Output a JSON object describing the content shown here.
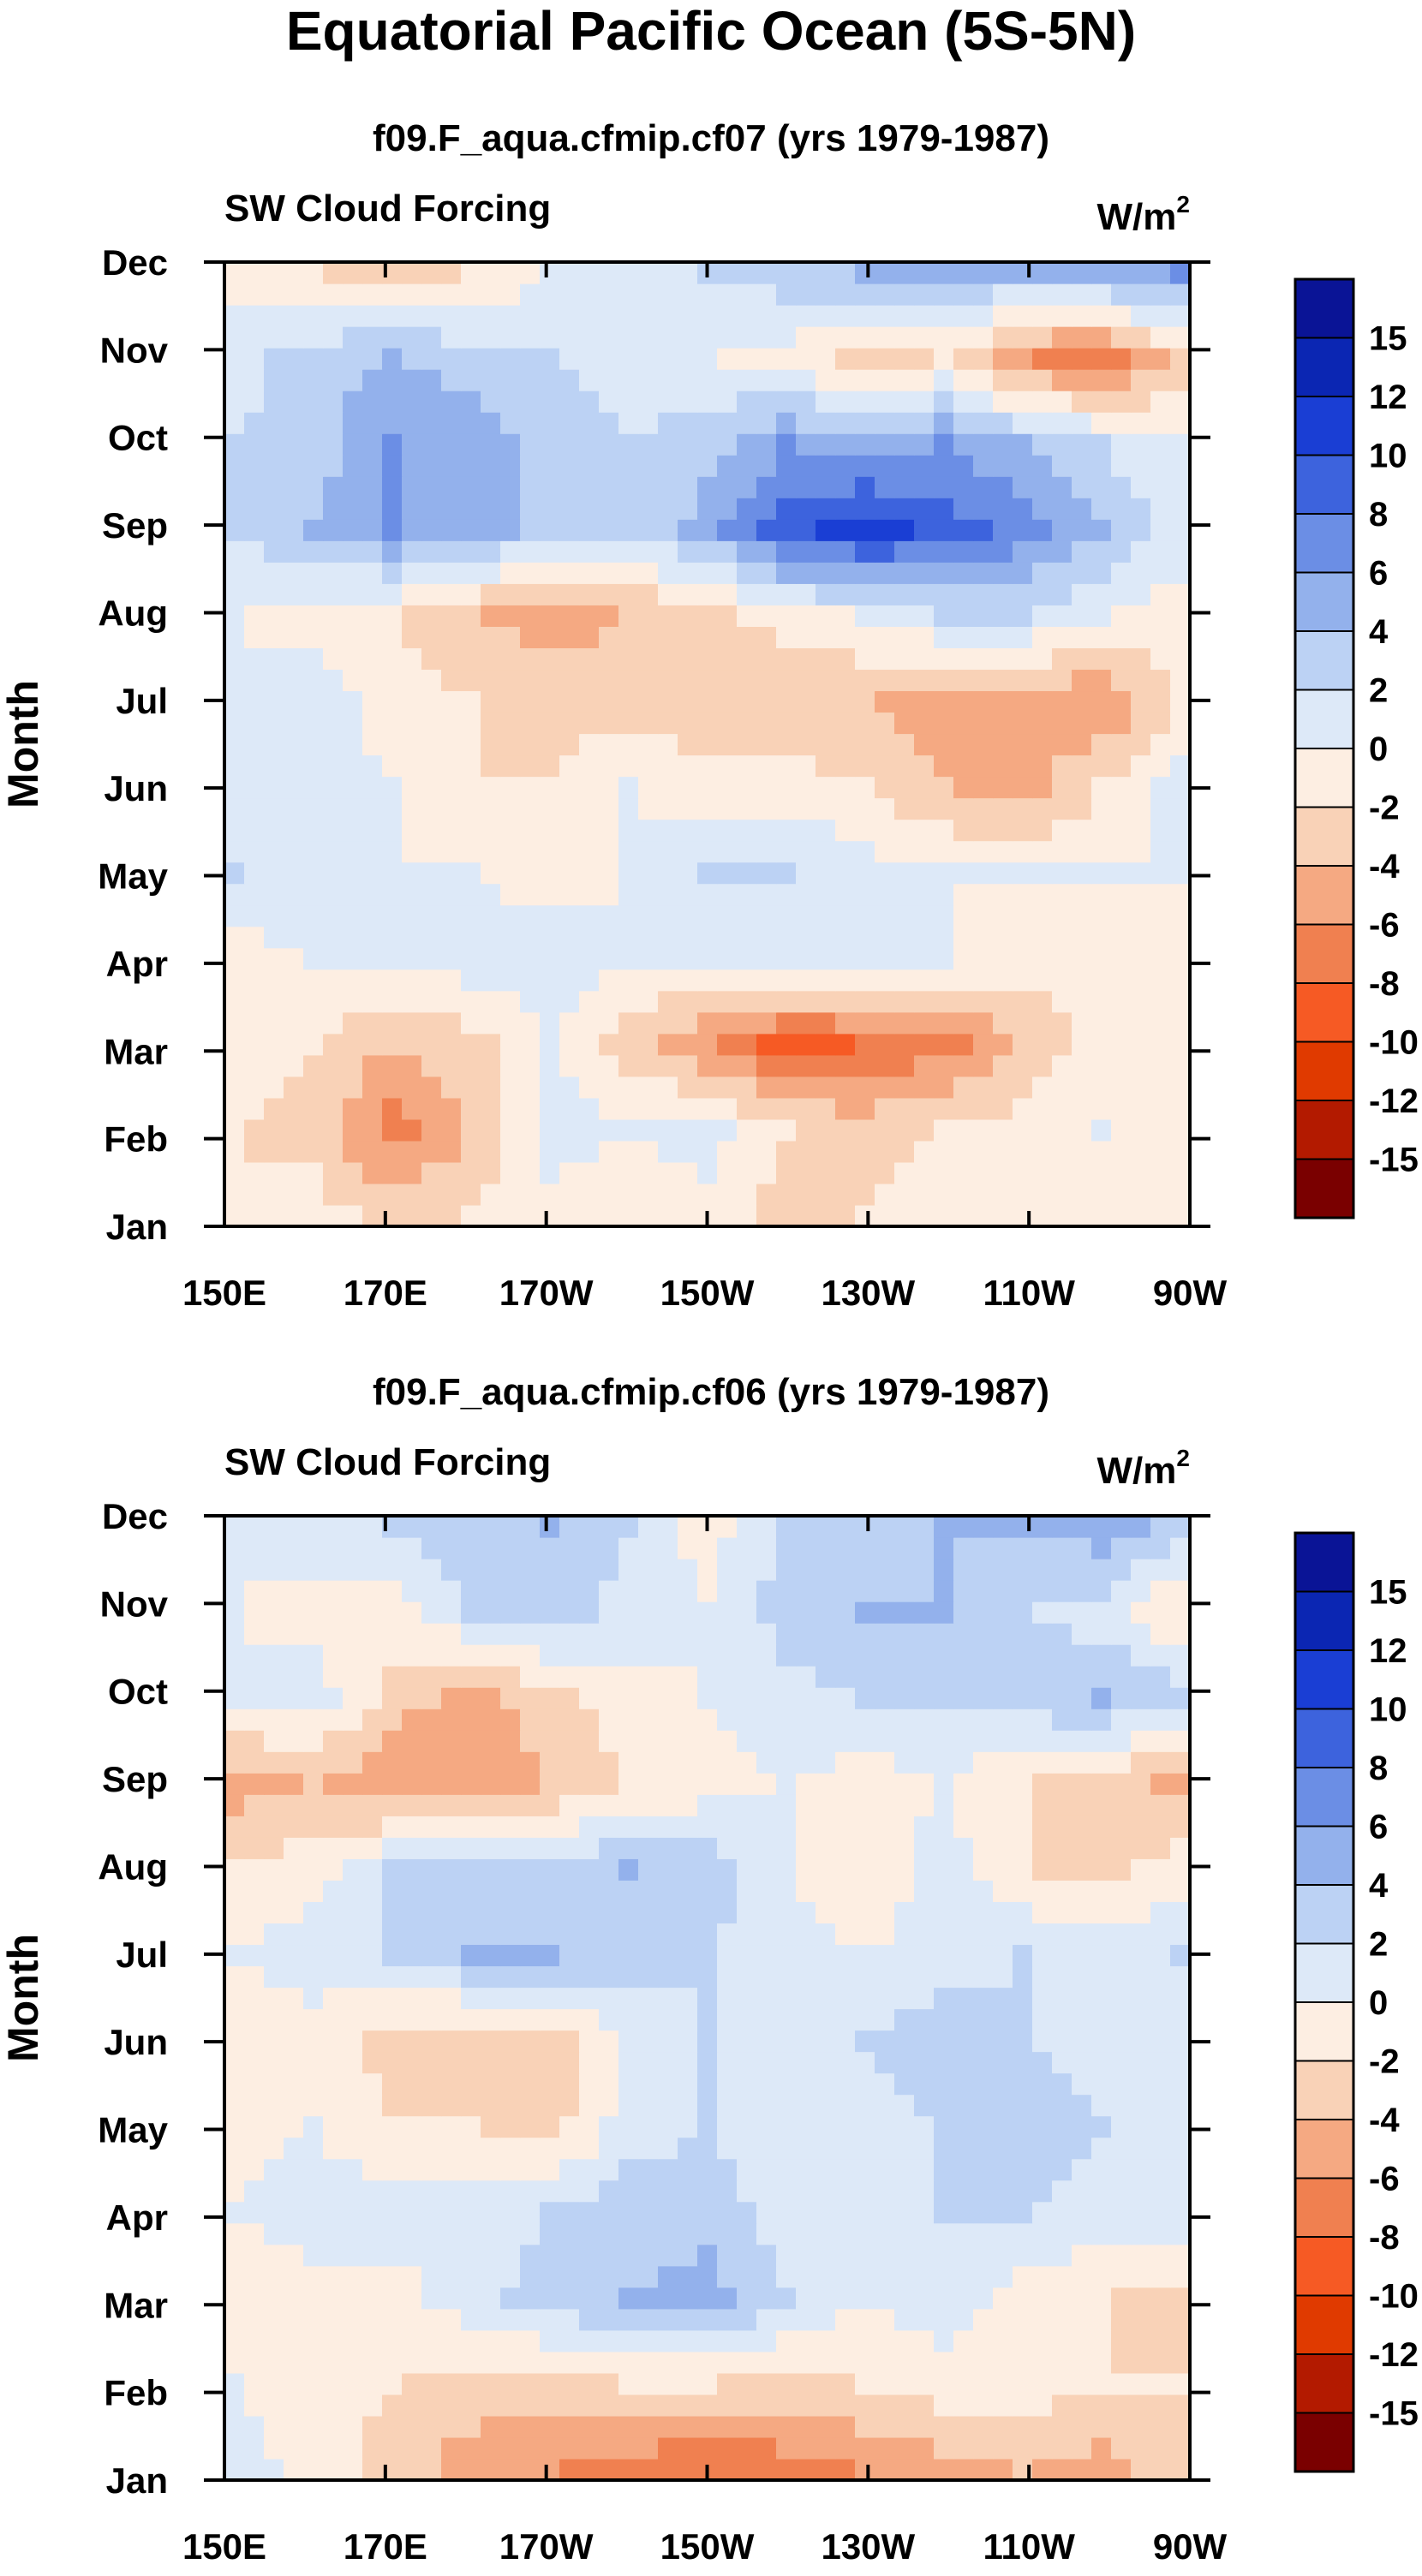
{
  "figure_title": "Equatorial Pacific Ocean (5S-5N)",
  "colorbar": {
    "labels": [
      "15",
      "12",
      "10",
      "8",
      "6",
      "4",
      "2",
      "0",
      "-2",
      "-4",
      "-6",
      "-8",
      "-10",
      "-12",
      "-15"
    ],
    "colors": [
      "#7a0000",
      "#b31a00",
      "#e03a00",
      "#f65a24",
      "#f08050",
      "#f5a982",
      "#f9d2b7",
      "#fdeee2",
      "#dde9f8",
      "#bcd2f4",
      "#93b1ec",
      "#6b8ee5",
      "#3d63dd",
      "#1a3ed4",
      "#0b26b3",
      "#0a1496"
    ]
  },
  "chart_data": [
    {
      "type": "heatmap",
      "title": "f09.F_aqua.cfmip.cf07 (yrs 1979-1987)",
      "left_label": "SW Cloud Forcing",
      "units_base": "W/m",
      "units_exp": "2",
      "ylabel": "Month",
      "xlabel": "",
      "x_ticks": [
        "150E",
        "170E",
        "170W",
        "150W",
        "130W",
        "110W",
        "90W"
      ],
      "y_ticks": [
        "Jan",
        "Feb",
        "Mar",
        "Apr",
        "May",
        "Jun",
        "Jul",
        "Aug",
        "Sep",
        "Oct",
        "Nov",
        "Dec"
      ],
      "levels": [
        -15,
        -12,
        -10,
        -8,
        -6,
        -4,
        -2,
        0,
        2,
        4,
        6,
        8,
        10,
        12,
        15
      ],
      "x_lon": [
        150,
        160,
        170,
        180,
        190,
        200,
        210,
        220,
        230,
        240,
        250,
        260,
        270
      ],
      "grid": [
        [
          -2,
          -1,
          -3,
          -2,
          -1,
          -2,
          -1,
          -3,
          -2,
          -1,
          -1,
          -1,
          -2
        ],
        [
          -2,
          -3,
          -7,
          -4,
          1,
          0,
          1,
          -2,
          -3,
          -2,
          -1,
          0,
          -1
        ],
        [
          -1,
          -2,
          -4,
          -3,
          0,
          -3,
          -6,
          -9,
          -8,
          -7,
          -4,
          -1,
          -1
        ],
        [
          -1,
          0,
          1,
          1,
          1,
          0,
          0,
          1,
          1,
          0,
          -1,
          -2,
          -1
        ],
        [
          2,
          1,
          0,
          0,
          -1,
          0,
          2,
          2,
          1,
          0,
          0,
          0,
          0
        ],
        [
          1,
          1,
          0,
          -2,
          -2,
          0,
          -1,
          -1,
          -2,
          -4,
          -5,
          -2,
          1
        ],
        [
          0,
          1,
          -1,
          -2,
          -3,
          -3,
          -4,
          -4,
          -4,
          -5,
          -5,
          -6,
          -2
        ],
        [
          0,
          -1,
          -2,
          -4,
          -5,
          -4,
          -3,
          -1,
          0,
          2,
          2,
          0,
          -1
        ],
        [
          2,
          4,
          6,
          5,
          3,
          2,
          5,
          9,
          11,
          9,
          7,
          4,
          1
        ],
        [
          2,
          3,
          6,
          5,
          3,
          2,
          3,
          6,
          5,
          6,
          4,
          2,
          0
        ],
        [
          1,
          3,
          4,
          3,
          2,
          1,
          0,
          -1,
          -3,
          -2,
          -6,
          -8,
          -3
        ],
        [
          -1,
          -2,
          -3,
          -2,
          0,
          1,
          2,
          3,
          4,
          5,
          4,
          5,
          6
        ]
      ]
    },
    {
      "type": "heatmap",
      "title": "f09.F_aqua.cfmip.cf06 (yrs 1979-1987)",
      "left_label": "SW Cloud Forcing",
      "units_base": "W/m",
      "units_exp": "2",
      "ylabel": "Month",
      "xlabel": "",
      "x_ticks": [
        "150E",
        "170E",
        "170W",
        "150W",
        "130W",
        "110W",
        "90W"
      ],
      "y_ticks": [
        "Jan",
        "Feb",
        "Mar",
        "Apr",
        "May",
        "Jun",
        "Jul",
        "Aug",
        "Sep",
        "Oct",
        "Nov",
        "Dec"
      ],
      "levels": [
        -15,
        -12,
        -10,
        -8,
        -6,
        -4,
        -2,
        0,
        2,
        4,
        6,
        8,
        10,
        12,
        15
      ],
      "x_lon": [
        150,
        160,
        170,
        180,
        190,
        200,
        210,
        220,
        230,
        240,
        250,
        260,
        270
      ],
      "grid": [
        [
          1,
          -1,
          -3,
          -5,
          -6,
          -7,
          -8,
          -7,
          -6,
          -5,
          -4,
          -5,
          -3
        ],
        [
          0,
          -1,
          -2,
          -3,
          -3,
          -2,
          -2,
          -3,
          -2,
          -1,
          -1,
          -2,
          -2
        ],
        [
          -1,
          -1,
          -1,
          1,
          3,
          4,
          5,
          2,
          0,
          1,
          -1,
          -2,
          -3
        ],
        [
          0,
          1,
          1,
          1,
          2,
          3,
          3,
          1,
          0,
          2,
          2,
          1,
          1
        ],
        [
          -1,
          0,
          -2,
          -2,
          -3,
          1,
          2,
          1,
          1,
          2,
          3,
          2,
          1
        ],
        [
          -1,
          -1,
          -3,
          -4,
          -4,
          0,
          2,
          1,
          2,
          3,
          2,
          1,
          0
        ],
        [
          0,
          1,
          2,
          4,
          4,
          3,
          2,
          1,
          0,
          1,
          2,
          1,
          2
        ],
        [
          -2,
          -1,
          2,
          3,
          3,
          4,
          3,
          0,
          -2,
          1,
          -2,
          -3,
          -1
        ],
        [
          -5,
          -4,
          -6,
          -6,
          -4,
          -2,
          -1,
          0,
          -1,
          0,
          -2,
          -3,
          -5
        ],
        [
          0,
          1,
          -3,
          -5,
          -3,
          -1,
          0,
          1,
          2,
          2,
          3,
          4,
          3
        ],
        [
          0,
          -1,
          -1,
          2,
          3,
          1,
          0,
          3,
          4,
          4,
          2,
          1,
          -2
        ],
        [
          0,
          1,
          2,
          3,
          4,
          2,
          -1,
          2,
          3,
          4,
          4,
          5,
          3
        ]
      ]
    }
  ]
}
